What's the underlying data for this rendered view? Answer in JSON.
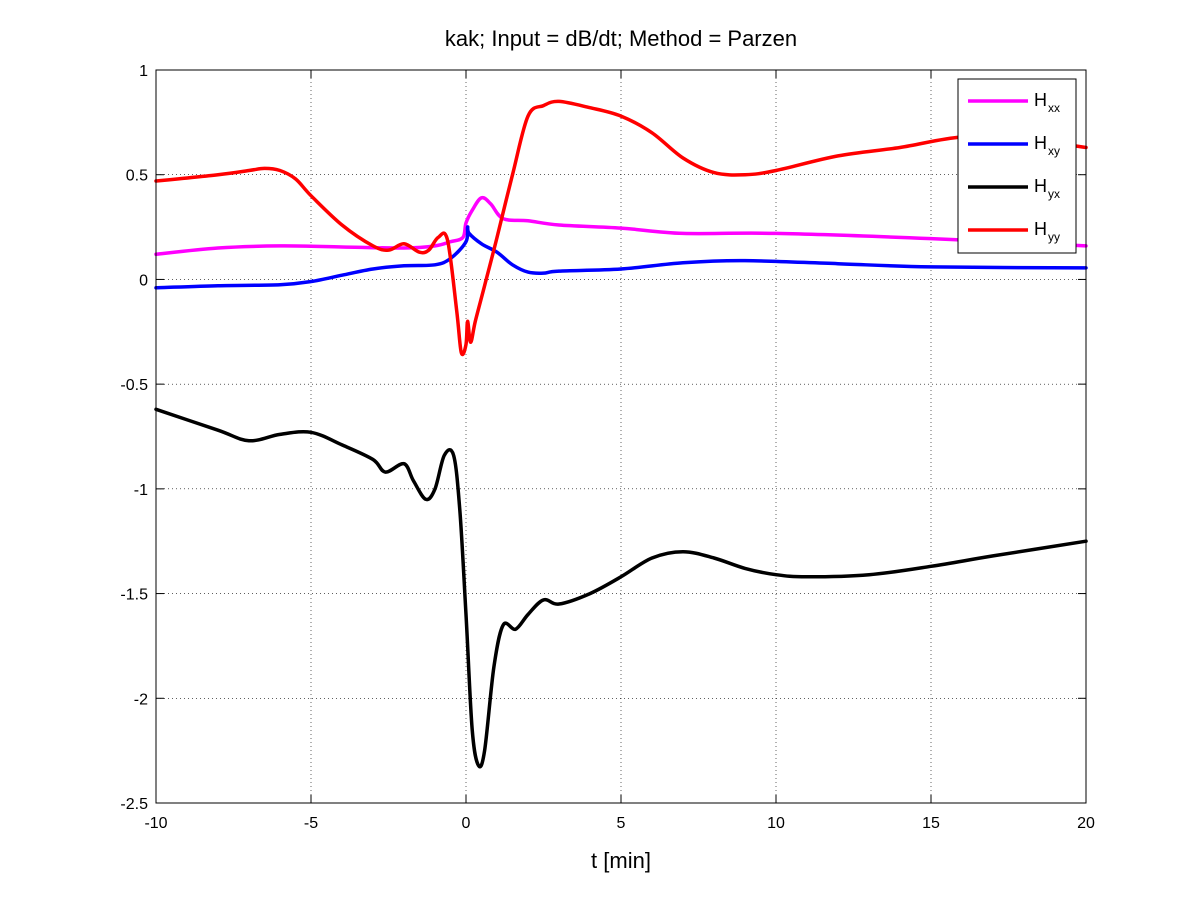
{
  "chart_data": {
    "type": "line",
    "title": "kak; Input = dB/dt; Method = Parzen",
    "xlabel": "t [min]",
    "ylabel": "",
    "xlim": [
      -10,
      20
    ],
    "ylim": [
      -2.5,
      1
    ],
    "xticks": [
      -10,
      -5,
      0,
      5,
      10,
      15,
      20
    ],
    "xtick_labels": [
      "-10",
      "-5",
      "0",
      "5",
      "10",
      "15",
      "20"
    ],
    "yticks": [
      -2.5,
      -2,
      -1.5,
      -1,
      -0.5,
      0,
      0.5,
      1
    ],
    "ytick_labels": [
      "-2.5",
      "-2",
      "-1.5",
      "-1",
      "-0.5",
      "0",
      "0.5",
      "1"
    ],
    "grid": true,
    "legend_position": "top-right",
    "series": [
      {
        "name": "H_xx",
        "label_main": "H",
        "label_sub": "xx",
        "color": "#ff00ff",
        "x": [
          -10,
          -8,
          -6,
          -4,
          -2,
          -1,
          -0.5,
          -0.1,
          0,
          0.2,
          0.5,
          0.8,
          1.2,
          2,
          3,
          5,
          7,
          10,
          15,
          20
        ],
        "y": [
          0.12,
          0.15,
          0.16,
          0.155,
          0.15,
          0.16,
          0.18,
          0.2,
          0.27,
          0.33,
          0.39,
          0.36,
          0.29,
          0.28,
          0.26,
          0.245,
          0.22,
          0.22,
          0.195,
          0.16
        ]
      },
      {
        "name": "H_xy",
        "label_main": "H",
        "label_sub": "xy",
        "color": "#0000ff",
        "x": [
          -10,
          -8,
          -6,
          -5,
          -4,
          -3,
          -2,
          -1,
          -0.5,
          0,
          0.05,
          0.1,
          0.5,
          1,
          1.5,
          2,
          2.5,
          3,
          5,
          7,
          9,
          12,
          15,
          20
        ],
        "y": [
          -0.04,
          -0.03,
          -0.025,
          -0.01,
          0.02,
          0.05,
          0.065,
          0.07,
          0.1,
          0.18,
          0.25,
          0.22,
          0.17,
          0.13,
          0.07,
          0.035,
          0.03,
          0.04,
          0.05,
          0.08,
          0.09,
          0.075,
          0.06,
          0.055
        ]
      },
      {
        "name": "H_yx",
        "label_main": "H",
        "label_sub": "yx",
        "color": "#000000",
        "x": [
          -10,
          -8,
          -7,
          -6,
          -5,
          -4,
          -3,
          -2.6,
          -2,
          -1.7,
          -1.3,
          -1,
          -0.7,
          -0.4,
          -0.2,
          0,
          0.2,
          0.4,
          0.6,
          0.9,
          1.2,
          1.6,
          2,
          2.5,
          3,
          4,
          5,
          6,
          7,
          8,
          9,
          10,
          11,
          13,
          15,
          17,
          20
        ],
        "y": [
          -0.62,
          -0.72,
          -0.77,
          -0.74,
          -0.73,
          -0.79,
          -0.86,
          -0.92,
          -0.88,
          -0.96,
          -1.05,
          -1.0,
          -0.84,
          -0.84,
          -1.1,
          -1.6,
          -2.15,
          -2.32,
          -2.25,
          -1.85,
          -1.65,
          -1.67,
          -1.6,
          -1.53,
          -1.55,
          -1.5,
          -1.42,
          -1.33,
          -1.3,
          -1.33,
          -1.38,
          -1.41,
          -1.42,
          -1.41,
          -1.37,
          -1.32,
          -1.25
        ]
      },
      {
        "name": "H_yy",
        "label_main": "H",
        "label_sub": "yy",
        "color": "#ff0000",
        "x": [
          -10,
          -8,
          -7,
          -6.5,
          -6,
          -5.5,
          -5,
          -4,
          -3,
          -2.5,
          -2,
          -1.5,
          -1.2,
          -0.9,
          -0.6,
          -0.3,
          -0.15,
          0,
          0.05,
          0.15,
          0.3,
          0.6,
          1,
          1.5,
          2,
          2.5,
          3,
          4,
          5,
          6,
          7,
          8,
          9,
          10,
          12,
          14,
          16,
          18,
          20
        ],
        "y": [
          0.47,
          0.5,
          0.52,
          0.53,
          0.52,
          0.48,
          0.4,
          0.26,
          0.16,
          0.14,
          0.17,
          0.13,
          0.14,
          0.2,
          0.19,
          -0.15,
          -0.35,
          -0.31,
          -0.2,
          -0.3,
          -0.2,
          -0.03,
          0.2,
          0.5,
          0.78,
          0.83,
          0.85,
          0.82,
          0.78,
          0.7,
          0.58,
          0.51,
          0.5,
          0.52,
          0.59,
          0.63,
          0.68,
          0.67,
          0.63
        ]
      }
    ]
  }
}
